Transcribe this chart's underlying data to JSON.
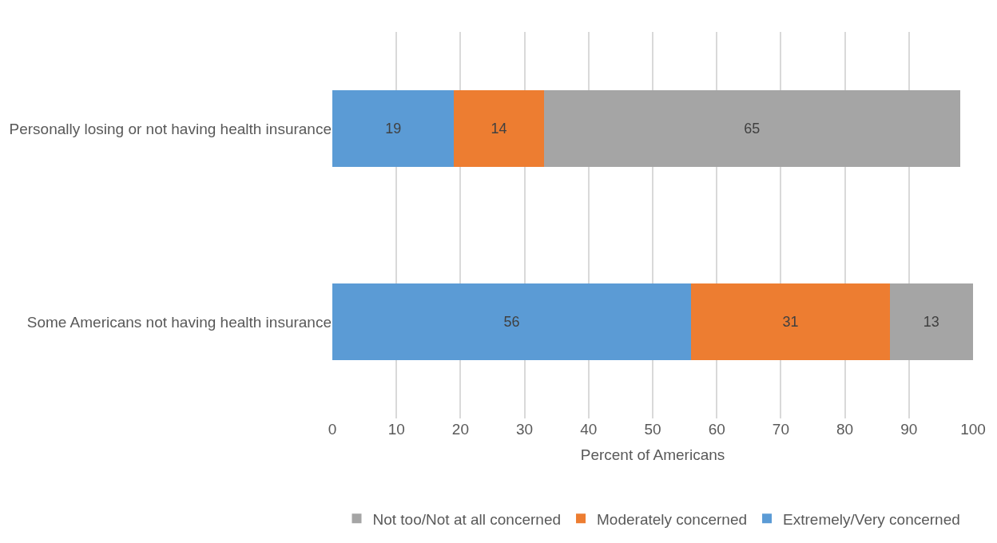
{
  "chart_data": {
    "type": "bar",
    "orientation": "horizontal",
    "stacked": true,
    "categories": [
      "Personally losing or not having health insurance",
      "Some Americans not having health insurance"
    ],
    "series": [
      {
        "name": "Extremely/Very concerned",
        "color": "#5b9bd5",
        "values": [
          19,
          56
        ]
      },
      {
        "name": "Moderately concerned",
        "color": "#ed7d31",
        "values": [
          14,
          31
        ]
      },
      {
        "name": "Not too/Not at all concerned",
        "color": "#a5a5a5",
        "values": [
          65,
          13
        ]
      }
    ],
    "xlabel": "Percent of Americans",
    "xlim": [
      0,
      100
    ],
    "xticks": [
      0,
      10,
      20,
      30,
      40,
      50,
      60,
      70,
      80,
      90,
      100
    ],
    "grid": "x",
    "legend": "bottom",
    "data_labels": true
  }
}
